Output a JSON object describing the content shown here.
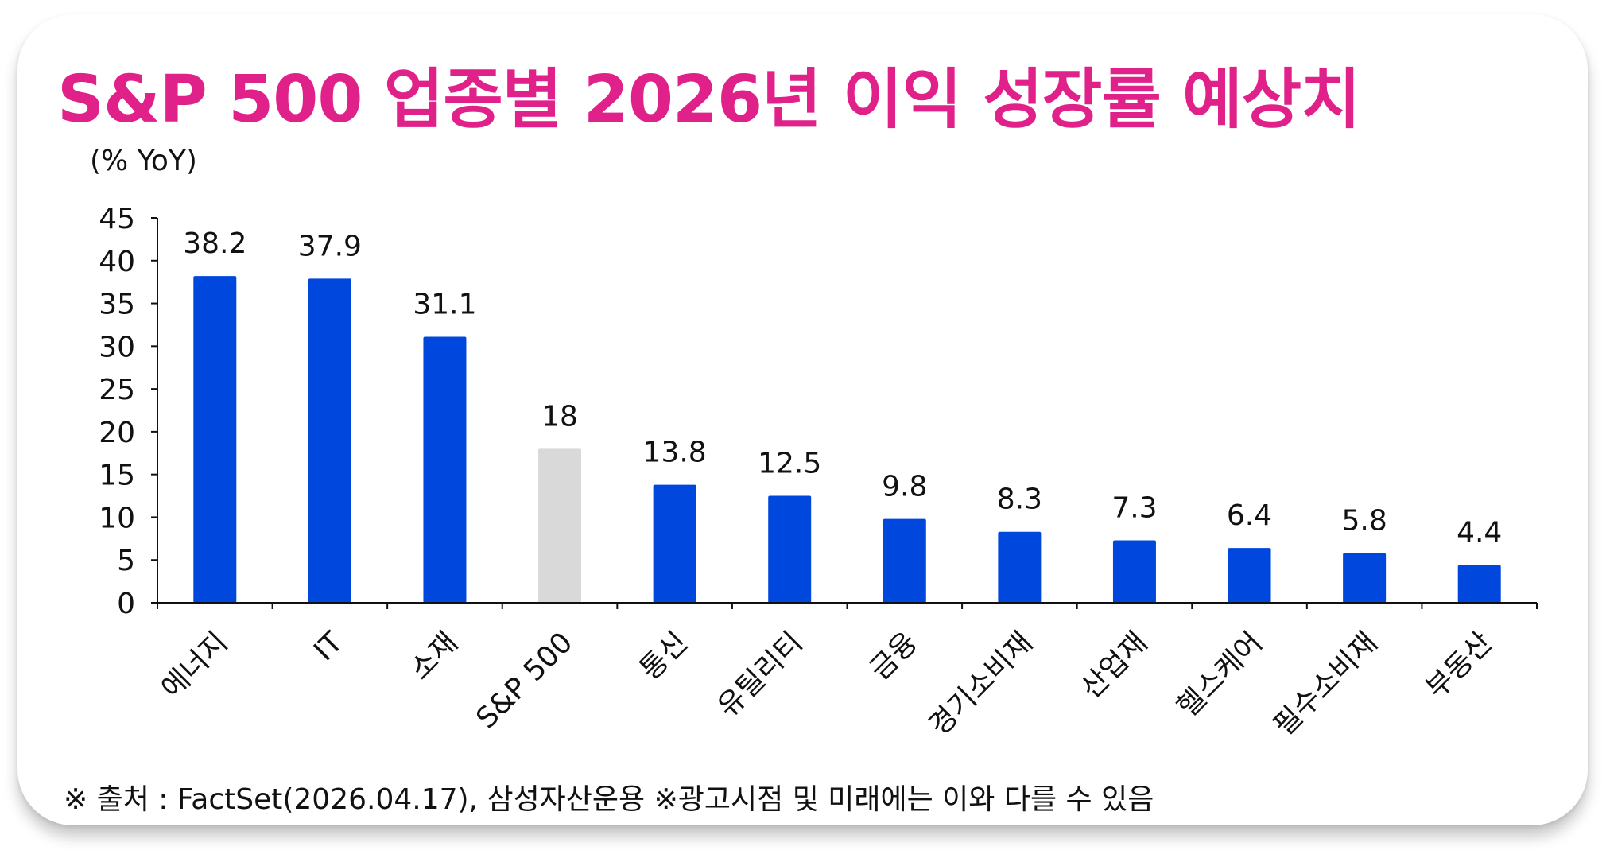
{
  "title": "S&P 500 업종별 2026년 이익 성장률 예상치",
  "unit_label": "(% YoY)",
  "footer": "※ 출처 : FactSet(2026.04.17), 삼성자산운용 ※광고시점 및 미래에는 이와 다를 수 있음",
  "colors": {
    "title": "#e0218a",
    "bar": "#0047de",
    "highlight_bar": "#d9d9d9",
    "axis": "#111111"
  },
  "chart_data": {
    "type": "bar",
    "title": "S&P 500 업종별 2026년 이익 성장률 예상치",
    "ylabel": "(% YoY)",
    "xlabel": "",
    "ylim": [
      0,
      45
    ],
    "yticks": [
      0,
      5,
      10,
      15,
      20,
      25,
      30,
      35,
      40,
      45
    ],
    "grid": false,
    "categories": [
      "에너지",
      "IT",
      "소재",
      "S&P 500",
      "통신",
      "유틸리티",
      "금융",
      "경기소비재",
      "산업재",
      "헬스케어",
      "필수소비재",
      "부동산"
    ],
    "values": [
      38.2,
      37.9,
      31.1,
      18,
      13.8,
      12.5,
      9.8,
      8.3,
      7.3,
      6.4,
      5.8,
      4.4
    ],
    "value_labels": [
      "38.2",
      "37.9",
      "31.1",
      "18",
      "13.8",
      "12.5",
      "9.8",
      "8.3",
      "7.3",
      "6.4",
      "5.8",
      "4.4"
    ],
    "highlight_category": "S&P 500"
  }
}
